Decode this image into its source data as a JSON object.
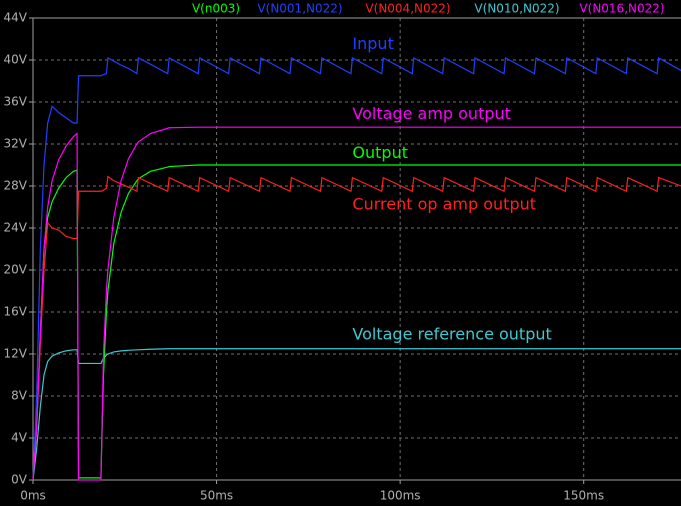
{
  "chart_data": {
    "type": "line",
    "x": [
      0,
      1,
      2,
      3,
      4,
      5.2,
      7,
      9,
      11,
      12,
      12.4,
      15,
      18.5,
      19.2,
      20,
      20.4,
      22,
      24,
      26,
      28.3,
      28.7,
      32,
      36.7,
      37.1,
      45,
      45.4,
      53.3,
      53.7,
      61.7,
      62.1,
      70,
      70.4,
      78.3,
      78.7,
      86.6,
      87,
      95,
      95.4,
      103.3,
      103.7,
      111.6,
      112,
      120,
      120.4,
      128.3,
      128.7,
      136.6,
      137,
      145,
      145.4,
      153.3,
      153.7,
      161.6,
      162,
      170,
      170.4,
      176.5
    ],
    "series": [
      {
        "name": "V(n003)",
        "color": "#00ff00",
        "values": [
          0,
          5,
          14,
          22,
          25,
          26.5,
          27.8,
          28.8,
          29.4,
          29.5,
          0.2,
          0.2,
          0.2,
          10,
          16,
          18,
          22.5,
          25.5,
          27.3,
          28.5,
          28.7,
          29.4,
          29.8,
          29.85,
          30,
          30,
          30,
          30,
          30,
          30,
          30,
          30,
          30,
          30,
          30,
          30,
          30,
          30,
          30,
          30,
          30,
          30,
          30,
          30,
          30,
          30,
          30,
          30,
          30,
          30,
          30,
          30,
          30,
          30,
          30,
          30,
          30
        ]
      },
      {
        "name": "V(N001,N022)",
        "color": "#2040ff",
        "values": [
          0,
          8,
          22,
          30,
          34,
          35.6,
          35,
          34.5,
          34,
          34,
          38.5,
          38.5,
          38.5,
          38.6,
          38.7,
          40.2,
          39.9,
          39.5,
          39.2,
          38.7,
          40.2,
          39.6,
          38.7,
          40.2,
          38.7,
          40.2,
          38.7,
          40.2,
          38.7,
          40.2,
          38.7,
          40.2,
          38.7,
          40.2,
          38.7,
          40.2,
          38.7,
          40.2,
          38.7,
          40.2,
          38.7,
          40.2,
          38.7,
          40.2,
          38.7,
          40.2,
          38.7,
          40.2,
          38.7,
          40.2,
          38.7,
          40.2,
          38.7,
          40.2,
          38.7,
          40.2,
          39.0
        ]
      },
      {
        "name": "V(N004,N022)",
        "color": "#ff2020",
        "values": [
          0,
          5,
          13,
          20,
          24.5,
          24,
          23.8,
          23.2,
          23,
          23,
          27.5,
          27.5,
          27.5,
          27.6,
          27.8,
          28.9,
          28.5,
          28.2,
          27.9,
          27.5,
          28.8,
          28.25,
          27.5,
          28.8,
          27.5,
          28.8,
          27.5,
          28.8,
          27.5,
          28.8,
          27.5,
          28.8,
          27.5,
          28.8,
          27.5,
          28.8,
          27.5,
          28.8,
          27.5,
          28.8,
          27.5,
          28.8,
          27.5,
          28.8,
          27.5,
          28.8,
          27.5,
          28.8,
          27.5,
          28.8,
          27.5,
          28.8,
          27.5,
          28.8,
          27.5,
          28.8,
          28.0
        ]
      },
      {
        "name": "V(N010,N022)",
        "color": "#40c8d0",
        "values": [
          0,
          3,
          7,
          10,
          11.3,
          11.8,
          12.1,
          12.3,
          12.4,
          12.4,
          11.1,
          11.1,
          11.1,
          11.6,
          11.9,
          12,
          12.2,
          12.3,
          12.35,
          12.4,
          12.4,
          12.45,
          12.5,
          12.5,
          12.5,
          12.5,
          12.5,
          12.5,
          12.5,
          12.5,
          12.5,
          12.5,
          12.5,
          12.5,
          12.5,
          12.5,
          12.5,
          12.5,
          12.5,
          12.5,
          12.5,
          12.5,
          12.5,
          12.5,
          12.5,
          12.5,
          12.5,
          12.5,
          12.5,
          12.5,
          12.5,
          12.5,
          12.5,
          12.5,
          12.5,
          12.5,
          12.5
        ]
      },
      {
        "name": "V(N016,N022)",
        "color": "#ff00ff",
        "values": [
          0,
          5,
          14,
          22,
          26,
          28.5,
          30.5,
          31.8,
          32.7,
          33,
          0,
          0,
          0,
          12,
          18,
          20,
          25,
          28.5,
          30.6,
          32,
          32.2,
          33,
          33.5,
          33.55,
          33.6,
          33.6,
          33.6,
          33.6,
          33.6,
          33.6,
          33.6,
          33.6,
          33.6,
          33.6,
          33.6,
          33.6,
          33.6,
          33.6,
          33.6,
          33.6,
          33.6,
          33.6,
          33.6,
          33.6,
          33.6,
          33.6,
          33.6,
          33.6,
          33.6,
          33.6,
          33.6,
          33.6,
          33.6,
          33.6,
          33.6,
          33.6,
          33.6
        ]
      }
    ],
    "xlim": [
      0,
      176.5
    ],
    "ylim": [
      0,
      44
    ],
    "xticks": [
      {
        "value": 0,
        "label": "0ms"
      },
      {
        "value": 50,
        "label": "50ms"
      },
      {
        "value": 100,
        "label": "100ms"
      },
      {
        "value": 150,
        "label": "150ms"
      }
    ],
    "yticks": [
      {
        "value": 0,
        "label": "0V"
      },
      {
        "value": 4,
        "label": "4V"
      },
      {
        "value": 8,
        "label": "8V"
      },
      {
        "value": 12,
        "label": "12V"
      },
      {
        "value": 16,
        "label": "16V"
      },
      {
        "value": 20,
        "label": "20V"
      },
      {
        "value": 24,
        "label": "24V"
      },
      {
        "value": 28,
        "label": "28V"
      },
      {
        "value": 32,
        "label": "32V"
      },
      {
        "value": 36,
        "label": "36V"
      },
      {
        "value": 40,
        "label": "40V"
      },
      {
        "value": 44,
        "label": "44V"
      }
    ],
    "grid": true,
    "annotations": [
      {
        "text": "Input",
        "x": 87,
        "y": 41.5,
        "color": "#2040ff"
      },
      {
        "text": "Voltage amp output",
        "x": 87,
        "y": 34.8,
        "color": "#ff00ff"
      },
      {
        "text": "Output",
        "x": 87,
        "y": 31.1,
        "color": "#00ff00"
      },
      {
        "text": "Current op amp output",
        "x": 87,
        "y": 26.2,
        "color": "#ff2020"
      },
      {
        "text": "Voltage reference output",
        "x": 87,
        "y": 13.8,
        "color": "#40c8d0"
      }
    ]
  }
}
